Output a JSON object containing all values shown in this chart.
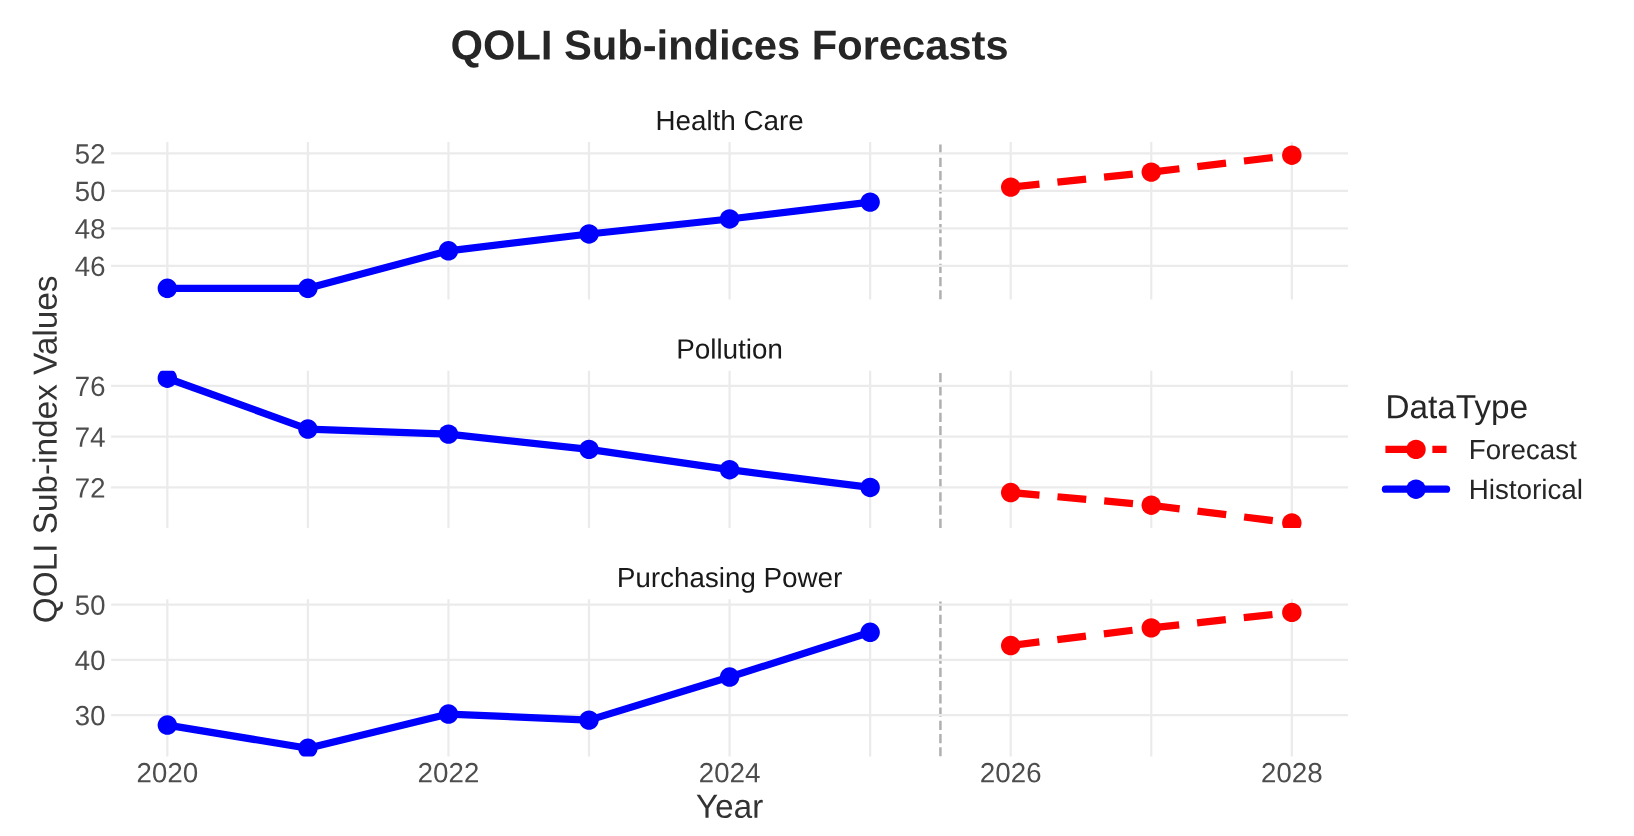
{
  "chart_data": [
    {
      "type": "line",
      "title": "QOLI Sub-indices Forecasts",
      "subtitle": "Health Care",
      "xlim": [
        2019.6,
        2028.4
      ],
      "xticks": [
        2020,
        {
          "value": 2021,
          "label": null
        },
        2022,
        {
          "value": 2023,
          "label": null
        },
        2024,
        {
          "value": 2025,
          "label": null
        },
        2026,
        {
          "value": 2027,
          "label": null
        },
        2028
      ],
      "ylim": [
        44.2,
        52.6
      ],
      "yticks": [
        46,
        48,
        50,
        52
      ],
      "tick_labels": "y",
      "grid": true,
      "marker": "circle",
      "ref_lines": [
        {
          "axis": "x",
          "value": 2025.5,
          "color": "#b0b0b0",
          "line_style": "dashed"
        }
      ],
      "series": [
        {
          "color": "#0000ff",
          "line_style": "solid",
          "x": [
            2020,
            2021,
            2022,
            2023,
            2024,
            2025
          ],
          "values": [
            44.8,
            44.8,
            46.8,
            47.7,
            48.5,
            49.4
          ]
        },
        {
          "color": "#ff0000",
          "line_style": "dashed",
          "x": [
            2026,
            2027,
            2028
          ],
          "values": [
            50.2,
            51.0,
            51.9
          ]
        }
      ]
    },
    {
      "type": "line",
      "subtitle": "Pollution",
      "ylabel": "QOLI Sub-index Values",
      "legend_title": "DataType",
      "legend": "right",
      "xlim": [
        2019.6,
        2028.4
      ],
      "xticks": [
        2020,
        {
          "value": 2021,
          "label": null
        },
        2022,
        {
          "value": 2023,
          "label": null
        },
        2024,
        {
          "value": 2025,
          "label": null
        },
        2026,
        {
          "value": 2027,
          "label": null
        },
        2028
      ],
      "ylim": [
        70.4,
        76.6
      ],
      "yticks": [
        72,
        74,
        76
      ],
      "tick_labels": "y",
      "grid": true,
      "marker": "circle",
      "ref_lines": [
        {
          "axis": "x",
          "value": 2025.5,
          "color": "#b0b0b0",
          "line_style": "dashed"
        }
      ],
      "series": [
        {
          "name": "Forecast",
          "color": "#ff0000",
          "line_style": "dashed",
          "x": [
            2026,
            2027,
            2028
          ],
          "values": [
            71.8,
            71.3,
            70.6
          ]
        },
        {
          "name": "Historical",
          "color": "#0000ff",
          "line_style": "solid",
          "x": [
            2020,
            2021,
            2022,
            2023,
            2024,
            2025
          ],
          "values": [
            76.3,
            74.3,
            74.1,
            73.5,
            72.7,
            72.0
          ]
        }
      ]
    },
    {
      "type": "line",
      "subtitle": "Purchasing Power",
      "xlabel": "Year",
      "xlim": [
        2019.6,
        2028.4
      ],
      "xticks": [
        2020,
        {
          "value": 2021,
          "label": null
        },
        2022,
        {
          "value": 2023,
          "label": null
        },
        2024,
        {
          "value": 2025,
          "label": null
        },
        2026,
        {
          "value": 2027,
          "label": null
        },
        2028
      ],
      "ylim": [
        22.5,
        51
      ],
      "yticks": [
        30,
        40,
        50
      ],
      "grid": true,
      "marker": "circle",
      "ref_lines": [
        {
          "axis": "x",
          "value": 2025.5,
          "color": "#b0b0b0",
          "line_style": "dashed"
        }
      ],
      "series": [
        {
          "color": "#0000ff",
          "line_style": "solid",
          "x": [
            2020,
            2021,
            2022,
            2023,
            2024,
            2025
          ],
          "values": [
            28.2,
            24.0,
            30.2,
            29.1,
            36.9,
            45.0
          ]
        },
        {
          "color": "#ff0000",
          "line_style": "dashed",
          "x": [
            2026,
            2027,
            2028
          ],
          "values": [
            42.6,
            45.8,
            48.6
          ]
        }
      ]
    }
  ]
}
